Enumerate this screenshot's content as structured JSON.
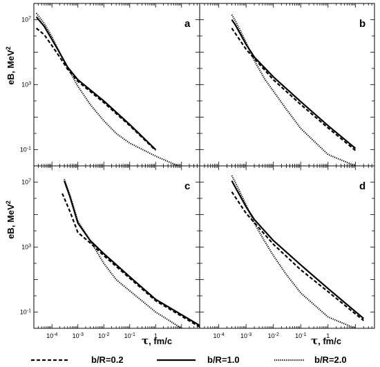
{
  "figure": {
    "ylabel_main": "eB, MeV",
    "ylabel_exp": "2",
    "xlabel_symbol": "τ",
    "xlabel_unit": ", fm/c"
  },
  "legend": [
    {
      "label": "b/R=0.2",
      "style": "dashed"
    },
    {
      "label": "b/R=1.0",
      "style": "solid"
    },
    {
      "label": "b/R=2.0",
      "style": "dotted"
    }
  ],
  "chart_data": [
    {
      "type": "line",
      "panel": "a",
      "xscale": "log",
      "yscale": "log",
      "xlim": [
        2e-05,
        50
      ],
      "ylim": [
        0.01,
        100000000.0
      ],
      "xticks": [
        "10^-4",
        "10^-3",
        "10^-2",
        "10^-1",
        "1"
      ],
      "yticks": [
        "10^-1",
        "10^3",
        "10^7"
      ],
      "series": [
        {
          "name": "b/R=0.2",
          "style": "dashed",
          "x": [
            2.5e-05,
            5e-05,
            0.0001,
            0.0002,
            0.0004,
            0.001,
            0.01,
            0.1,
            1
          ],
          "y": [
            3000000.0,
            1200000.0,
            250000.0,
            50000.0,
            9000.0,
            1600.0,
            80,
            3,
            0.09
          ]
        },
        {
          "name": "b/R=1.0",
          "style": "solid",
          "x": [
            2.5e-05,
            5e-05,
            0.0001,
            0.0002,
            0.0004,
            0.001,
            0.01,
            0.1,
            1
          ],
          "y": [
            15000000.0,
            4000000.0,
            600000.0,
            90000.0,
            12000.0,
            2000.0,
            100,
            3.5,
            0.1
          ]
        },
        {
          "name": "b/R=2.0",
          "style": "dotted",
          "x": [
            2.5e-05,
            5e-05,
            0.0001,
            0.0002,
            0.0004,
            0.001,
            0.003,
            0.01,
            0.03,
            0.1,
            1,
            10
          ],
          "y": [
            25000000.0,
            6000000.0,
            900000.0,
            90000.0,
            12000.0,
            800,
            60,
            6,
            1,
            0.25,
            0.04,
            0.008
          ]
        }
      ]
    },
    {
      "type": "line",
      "panel": "b",
      "xscale": "log",
      "yscale": "log",
      "xlim": [
        2e-05,
        50
      ],
      "ylim": [
        0.01,
        100000000.0
      ],
      "xticks": [
        "10^-4",
        "10^-3",
        "10^-2",
        "10^-1",
        "1"
      ],
      "yticks": [
        "10^-1",
        "10^3",
        "10^7"
      ],
      "series": [
        {
          "name": "b/R=0.2",
          "style": "dashed",
          "x": [
            0.0003,
            0.001,
            0.01,
            0.1,
            1,
            10
          ],
          "y": [
            3000000.0,
            150000.0,
            2000.0,
            60,
            2.2,
            0.09
          ]
        },
        {
          "name": "b/R=1.0",
          "style": "solid",
          "x": [
            0.0003,
            0.0004,
            0.001,
            0.002,
            0.01,
            0.1,
            1,
            10
          ],
          "y": [
            10000000.0,
            5000000.0,
            300000.0,
            50000.0,
            3000.0,
            90,
            3,
            0.12
          ]
        },
        {
          "name": "b/R=2.0",
          "style": "dotted",
          "x": [
            0.0003,
            0.0004,
            0.001,
            0.002,
            0.005,
            0.01,
            0.03,
            0.1,
            1,
            10
          ],
          "y": [
            20000000.0,
            9000000.0,
            400000.0,
            30000.0,
            2000.0,
            400,
            30,
            2,
            0.05,
            0.01
          ]
        }
      ]
    },
    {
      "type": "line",
      "panel": "c",
      "xscale": "log",
      "yscale": "log",
      "xlim": [
        2e-05,
        50
      ],
      "ylim": [
        0.01,
        100000000.0
      ],
      "xticks": [
        "10^-4",
        "10^-3",
        "10^-2",
        "10^-1",
        "1"
      ],
      "yticks": [
        "10^-1",
        "10^3",
        "10^7"
      ],
      "series": [
        {
          "name": "b/R=0.2",
          "style": "dashed",
          "x": [
            0.00025,
            0.0005,
            0.001,
            0.003,
            0.01,
            0.1,
            1,
            50
          ],
          "y": [
            2000000.0,
            150000.0,
            8000.0,
            1800.0,
            300,
            12,
            0.5,
            0.012
          ]
        },
        {
          "name": "b/R=1.0",
          "style": "solid",
          "x": [
            0.0003,
            0.0005,
            0.001,
            0.003,
            0.01,
            0.1,
            1,
            50
          ],
          "y": [
            12000000.0,
            1200000.0,
            30000.0,
            2500.0,
            400,
            15,
            0.6,
            0.015
          ]
        },
        {
          "name": "b/R=2.0",
          "style": "dotted",
          "x": [
            0.0003,
            0.0005,
            0.001,
            0.003,
            0.01,
            0.03,
            0.1,
            1,
            10,
            50
          ],
          "y": [
            15000000.0,
            1500000.0,
            40000.0,
            2500.0,
            100,
            10,
            2,
            0.1,
            0.01,
            0.004
          ]
        }
      ]
    },
    {
      "type": "line",
      "panel": "d",
      "xscale": "log",
      "yscale": "log",
      "xlim": [
        2e-05,
        50
      ],
      "ylim": [
        0.01,
        100000000.0
      ],
      "xticks": [
        "10^-4",
        "10^-3",
        "10^-2",
        "10^-1",
        "1"
      ],
      "yticks": [
        "10^-1",
        "10^3",
        "10^7"
      ],
      "series": [
        {
          "name": "b/R=0.2",
          "style": "dashed",
          "x": [
            0.0003,
            0.001,
            0.01,
            0.1,
            1,
            20
          ],
          "y": [
            2500000.0,
            120000.0,
            1500.0,
            40,
            1.8,
            0.03
          ]
        },
        {
          "name": "b/R=1.0",
          "style": "solid",
          "x": [
            0.0003,
            0.0004,
            0.001,
            0.002,
            0.01,
            0.1,
            1,
            20
          ],
          "y": [
            12000000.0,
            5000000.0,
            300000.0,
            50000.0,
            2500.0,
            80,
            2.8,
            0.04
          ]
        },
        {
          "name": "b/R=2.0",
          "style": "dotted",
          "x": [
            0.0003,
            0.0004,
            0.001,
            0.002,
            0.005,
            0.01,
            0.03,
            0.1,
            1,
            20
          ],
          "y": [
            25000000.0,
            10000000.0,
            400000.0,
            30000.0,
            2000.0,
            300,
            20,
            1.5,
            0.05,
            0.006
          ]
        }
      ]
    }
  ]
}
